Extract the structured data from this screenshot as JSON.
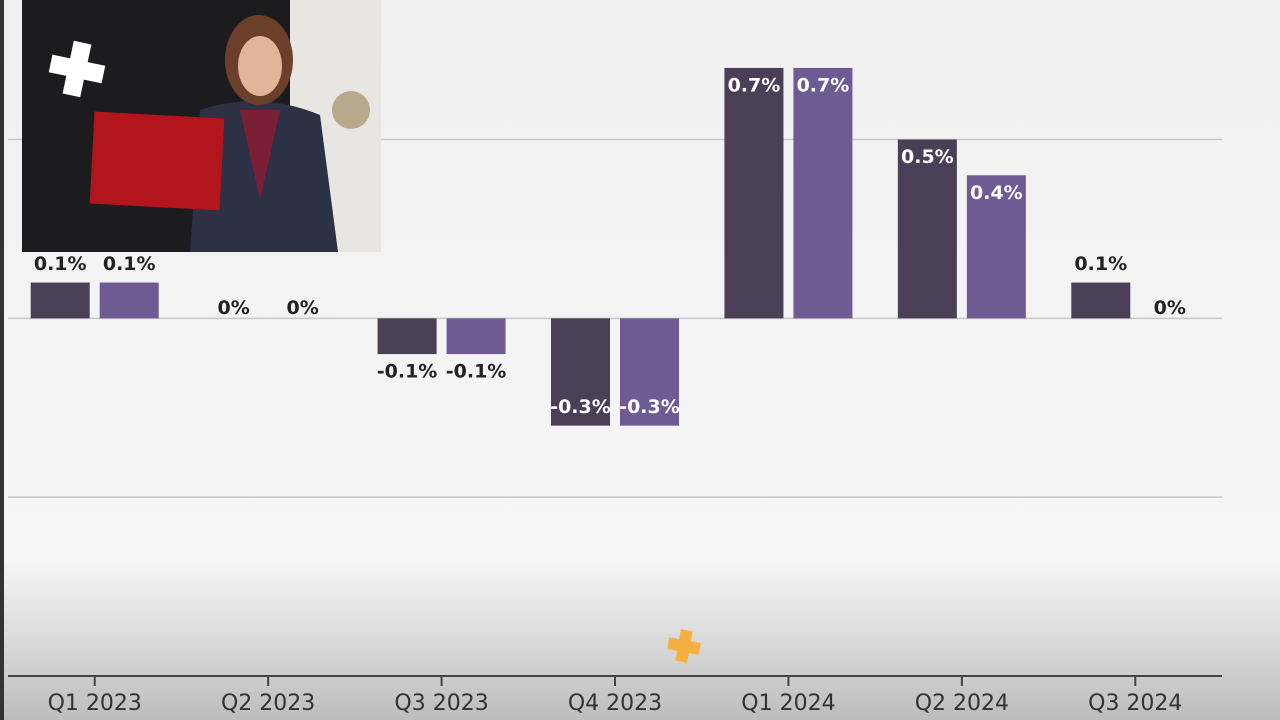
{
  "chart_data": {
    "type": "bar",
    "categories": [
      "Q1 2023",
      "Q2 2023",
      "Q3 2023",
      "Q4 2023",
      "Q1 2024",
      "Q2 2024",
      "Q3 2024"
    ],
    "series": [
      {
        "color": "#4b3e57",
        "values": [
          0.1,
          0,
          -0.1,
          -0.3,
          0.7,
          0.5,
          0.1
        ],
        "value_labels": [
          "0.1%",
          "0%",
          "-0.1%",
          "-0.3%",
          "0.7%",
          "0.5%",
          "0.1%"
        ]
      },
      {
        "color": "#6e5b93",
        "values": [
          0.1,
          0,
          -0.1,
          -0.3,
          0.7,
          0.4,
          0
        ],
        "value_labels": [
          "0.1%",
          "0%",
          "-0.1%",
          "-0.3%",
          "0.7%",
          "0.4%",
          "0%"
        ]
      }
    ],
    "ylim": [
      -1,
      0.89
    ],
    "yticks": [
      -1,
      -0.5,
      0,
      0.5
    ],
    "grid": true
  }
}
